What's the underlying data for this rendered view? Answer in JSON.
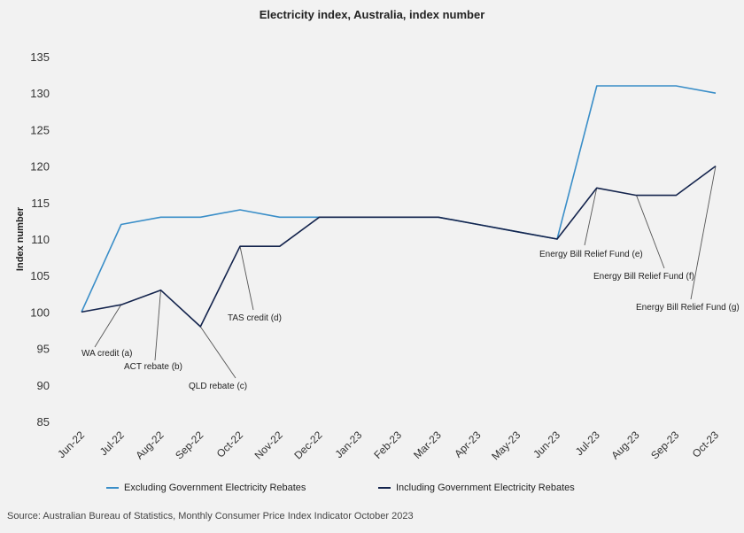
{
  "chart_data": {
    "type": "line",
    "title": "Electricity index, Australia, index number",
    "xlabel": "",
    "ylabel": "Index number",
    "ylim": [
      85,
      135
    ],
    "yticks": [
      85,
      90,
      95,
      100,
      105,
      110,
      115,
      120,
      125,
      130,
      135
    ],
    "grid": false,
    "legend_position": "bottom",
    "categories": [
      "Jun-22",
      "Jul-22",
      "Aug-22",
      "Sep-22",
      "Oct-22",
      "Nov-22",
      "Dec-22",
      "Jan-23",
      "Feb-23",
      "Mar-23",
      "Apr-23",
      "May-23",
      "Jun-23",
      "Jul-23",
      "Aug-23",
      "Sep-23",
      "Oct-23"
    ],
    "series": [
      {
        "name": "Excluding Government Electricity Rebates",
        "color": "#3a8ec8",
        "values": [
          100,
          112,
          113,
          113,
          114,
          113,
          113,
          113,
          113,
          113,
          112,
          111,
          110,
          131,
          131,
          131,
          130
        ]
      },
      {
        "name": "Including Government Electricity Rebates",
        "color": "#14244d",
        "values": [
          100,
          101,
          103,
          98,
          109,
          109,
          113,
          113,
          113,
          113,
          112,
          111,
          110,
          117,
          116,
          116,
          120
        ]
      }
    ],
    "annotations": [
      {
        "text": "WA credit (a)",
        "x": "Jul-22",
        "y": 101
      },
      {
        "text": "ACT rebate (b)",
        "x": "Aug-22",
        "y": 103
      },
      {
        "text": "QLD rebate (c)",
        "x": "Sep-22",
        "y": 98
      },
      {
        "text": "TAS credit (d)",
        "x": "Oct-22",
        "y": 109
      },
      {
        "text": "Energy Bill Relief Fund (e)",
        "x": "Jul-23",
        "y": 117
      },
      {
        "text": "Energy Bill Relief Fund (f)",
        "x": "Aug-23",
        "y": 116
      },
      {
        "text": "Energy Bill Relief Fund (g)",
        "x": "Oct-23",
        "y": 120
      }
    ]
  },
  "source": "Source: Australian Bureau of Statistics, Monthly Consumer Price Index Indicator October 2023"
}
